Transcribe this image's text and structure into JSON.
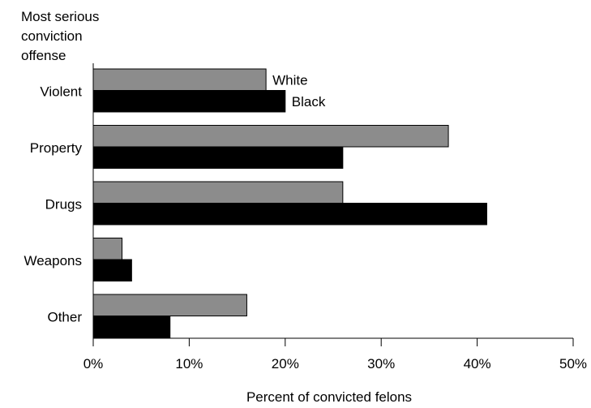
{
  "chart_data": {
    "type": "bar",
    "orientation": "horizontal",
    "categories": [
      "Violent",
      "Property",
      "Drugs",
      "Weapons",
      "Other"
    ],
    "series": [
      {
        "name": "White",
        "values": [
          18,
          37,
          26,
          3,
          16
        ],
        "color": "#8c8c8c"
      },
      {
        "name": "Black",
        "values": [
          20,
          26,
          41,
          4,
          8
        ],
        "color": "#000000"
      }
    ],
    "xlabel": "Percent of convicted felons",
    "ylabel": "Most serious\nconviction\noffense",
    "xlim": [
      0,
      50
    ],
    "xticks": [
      0,
      10,
      20,
      30,
      40,
      50
    ],
    "xtick_labels": [
      "0%",
      "10%",
      "20%",
      "30%",
      "40%",
      "50%"
    ],
    "grid": false,
    "legend": "inline labels on first category bars"
  }
}
